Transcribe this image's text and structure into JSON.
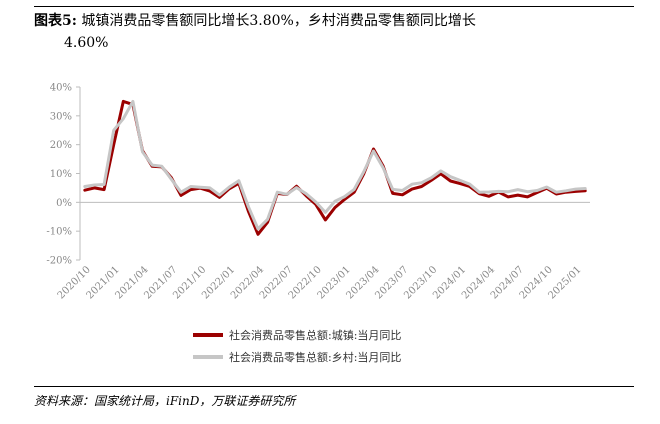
{
  "title": {
    "label": "图表5:",
    "line1": "城镇消费品零售额同比增长3.80%，乡村消费品零售额同比增长",
    "line2": "4.60%"
  },
  "source": "资料来源：国家统计局，iFinD，万联证券研究所",
  "chart_data": {
    "type": "line",
    "ylim": [
      -20,
      40
    ],
    "yticks": [
      "40%",
      "30%",
      "20%",
      "10%",
      "0%",
      "-10%",
      "-20%"
    ],
    "xtick_labels": [
      "2020/10",
      "2021/01",
      "2021/04",
      "2021/07",
      "2021/10",
      "2022/01",
      "2022/04",
      "2022/07",
      "2022/10",
      "2023/01",
      "2023/04",
      "2023/07",
      "2023/10",
      "2024/01",
      "2024/04",
      "2024/07",
      "2024/10",
      "2025/01"
    ],
    "x": [
      "2020/10",
      "2020/11",
      "2020/12",
      "2021/01",
      "2021/02",
      "2021/03",
      "2021/04",
      "2021/05",
      "2021/06",
      "2021/07",
      "2021/08",
      "2021/09",
      "2021/10",
      "2021/11",
      "2021/12",
      "2022/01",
      "2022/02",
      "2022/03",
      "2022/04",
      "2022/05",
      "2022/06",
      "2022/07",
      "2022/08",
      "2022/09",
      "2022/10",
      "2022/11",
      "2022/12",
      "2023/01",
      "2023/02",
      "2023/03",
      "2023/04",
      "2023/05",
      "2023/06",
      "2023/07",
      "2023/08",
      "2023/09",
      "2023/10",
      "2023/11",
      "2023/12",
      "2024/01",
      "2024/02",
      "2024/03",
      "2024/04",
      "2024/05",
      "2024/06",
      "2024/07",
      "2024/08",
      "2024/09",
      "2024/10",
      "2024/11",
      "2024/12",
      "2025/01",
      "2025/02"
    ],
    "series": [
      {
        "name": "社会消费品零售总额:城镇:当月同比",
        "color": "#9b0000",
        "values": [
          4.2,
          5.0,
          4.4,
          20.0,
          35.0,
          33.9,
          17.9,
          12.5,
          12.3,
          8.5,
          2.4,
          4.4,
          4.9,
          3.9,
          1.7,
          4.7,
          6.6,
          -3.1,
          -11.1,
          -6.9,
          3.1,
          2.7,
          5.6,
          2.3,
          -0.7,
          -6.1,
          -1.8,
          1.0,
          3.5,
          10.0,
          18.5,
          12.6,
          3.1,
          2.6,
          4.6,
          5.5,
          7.6,
          9.9,
          7.4,
          6.5,
          5.5,
          3.0,
          2.1,
          3.6,
          1.9,
          2.5,
          1.9,
          3.4,
          4.9,
          2.9,
          3.5,
          3.8,
          4.0
        ]
      },
      {
        "name": "社会消费品零售总额:乡村:当月同比",
        "color": "#c6c6c6",
        "values": [
          5.5,
          6.0,
          6.2,
          25.0,
          29.0,
          35.0,
          17.5,
          12.9,
          12.5,
          8.0,
          3.5,
          5.5,
          5.2,
          5.0,
          2.5,
          5.3,
          7.5,
          -1.5,
          -9.2,
          -5.9,
          3.5,
          2.8,
          5.1,
          3.0,
          0.1,
          -3.5,
          0.4,
          2.0,
          4.5,
          10.7,
          17.8,
          12.0,
          4.5,
          4.1,
          6.3,
          6.8,
          8.5,
          10.9,
          8.9,
          7.6,
          6.3,
          3.5,
          3.6,
          3.8,
          3.7,
          4.4,
          3.7,
          4.1,
          5.3,
          3.5,
          4.0,
          4.6,
          4.8
        ]
      }
    ],
    "legend_placement": "bottom",
    "grid": false
  }
}
